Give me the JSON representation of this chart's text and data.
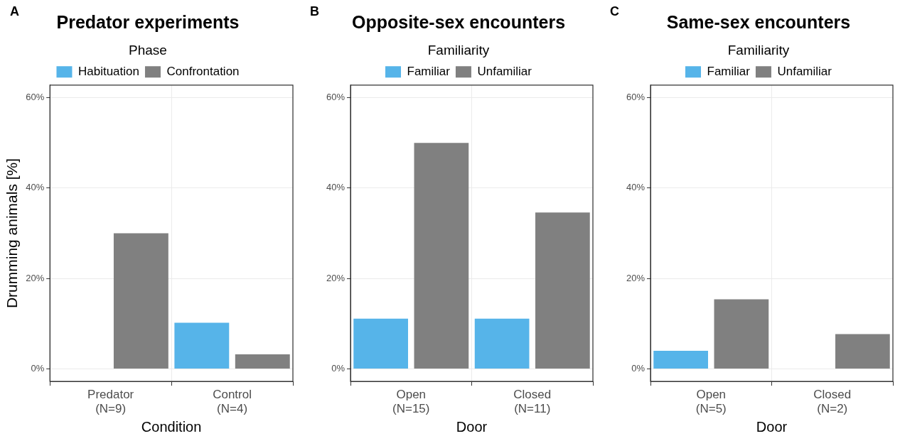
{
  "chart_data": [
    {
      "type": "bar",
      "title": "Predator experiments",
      "annotations": [
        "A"
      ],
      "xlabel": "Condition",
      "ylabel": "Drumming animals [%]",
      "legend_title": "Phase",
      "legend": "top",
      "categories": [
        "Predator\n(N=9)",
        "Control\n(N=4)"
      ],
      "series": [
        {
          "name": "Habituation",
          "color": "#56b4e9",
          "values": [
            0,
            10.2
          ]
        },
        {
          "name": "Confrontation",
          "color": "#808080",
          "values": [
            30,
            3.2
          ]
        }
      ],
      "ylim": [
        -2.8,
        62.8
      ],
      "yticks": [
        {
          "value": 0,
          "label": "0%"
        },
        {
          "value": 20,
          "label": "20%"
        },
        {
          "value": 40,
          "label": "40%"
        },
        {
          "value": 60,
          "label": "60%"
        }
      ],
      "grid": true
    },
    {
      "type": "bar",
      "title": "Opposite-sex encounters",
      "annotations": [
        "B"
      ],
      "xlabel": "Door",
      "legend_title": "Familiarity",
      "legend": "top",
      "categories": [
        "Open\n(N=15)",
        "Closed\n(N=11)"
      ],
      "series": [
        {
          "name": "Familiar",
          "color": "#56b4e9",
          "values": [
            11.1,
            11.1
          ]
        },
        {
          "name": "Unfamiliar",
          "color": "#808080",
          "values": [
            50,
            34.6
          ]
        }
      ],
      "ylim": [
        -2.8,
        62.8
      ],
      "yticks": [
        {
          "value": 0,
          "label": "0%"
        },
        {
          "value": 20,
          "label": "20%"
        },
        {
          "value": 40,
          "label": "40%"
        },
        {
          "value": 60,
          "label": "60%"
        }
      ],
      "grid": true
    },
    {
      "type": "bar",
      "title": "Same-sex encounters",
      "annotations": [
        "C"
      ],
      "xlabel": "Door",
      "legend_title": "Familiarity",
      "legend": "top",
      "categories": [
        "Open\n(N=5)",
        "Closed\n(N=2)"
      ],
      "series": [
        {
          "name": "Familiar",
          "color": "#56b4e9",
          "values": [
            4,
            0
          ]
        },
        {
          "name": "Unfamiliar",
          "color": "#808080",
          "values": [
            15.4,
            7.7
          ]
        }
      ],
      "ylim": [
        -2.8,
        62.8
      ],
      "yticks": [
        {
          "value": 0,
          "label": "0%"
        },
        {
          "value": 20,
          "label": "20%"
        },
        {
          "value": 40,
          "label": "40%"
        },
        {
          "value": 60,
          "label": "60%"
        }
      ],
      "grid": true
    }
  ]
}
